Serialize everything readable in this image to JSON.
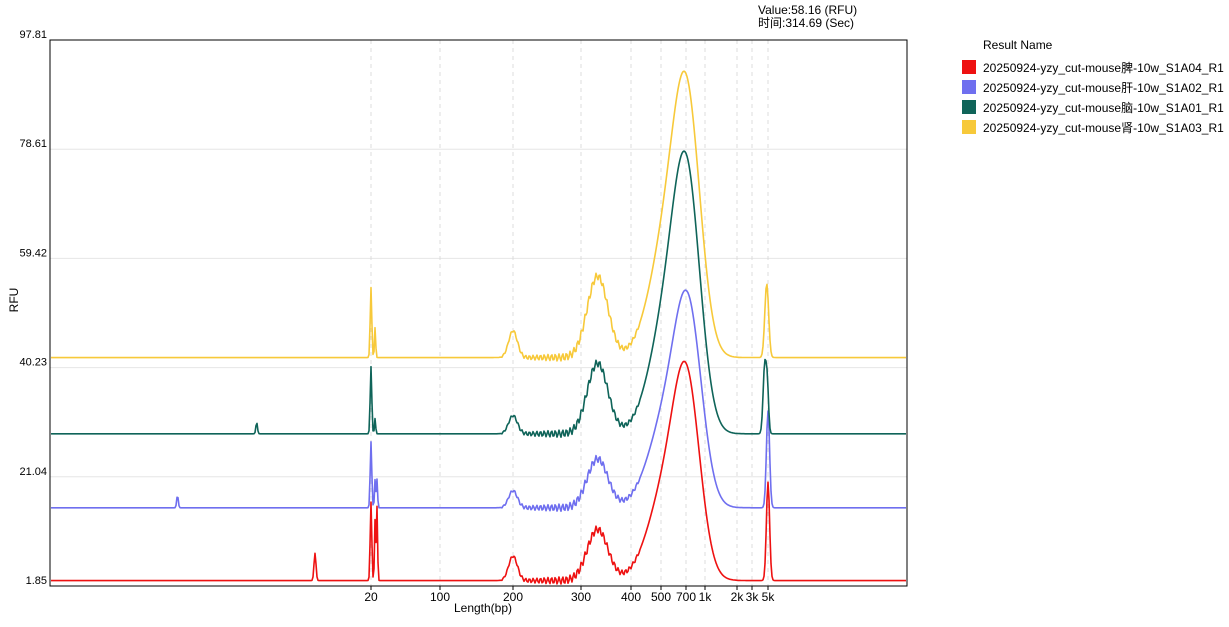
{
  "hover_readout": {
    "value_line": "Value:58.16 (RFU)",
    "time_line": "时间:314.69 (Sec)"
  },
  "legend": {
    "title": "Result Name"
  },
  "chart_data": {
    "type": "line",
    "xlabel": "Length(bp)",
    "ylabel": "RFU",
    "ylim": [
      1.85,
      97.81
    ],
    "y_ticks": [
      "97.81",
      "78.61",
      "59.42",
      "40.23",
      "21.04",
      "1.85"
    ],
    "x_scale": "nonlinear (marker-based, size ladder)",
    "x_ticks": [
      "20",
      "100",
      "200",
      "300",
      "400",
      "500",
      "700",
      "1k",
      "2k",
      "3k",
      "5k"
    ],
    "x_tick_bp": [
      20,
      100,
      200,
      300,
      400,
      500,
      700,
      1000,
      2000,
      3000,
      5000
    ],
    "grid": true,
    "legend_position": "right",
    "series": [
      {
        "name": "20250924-yzy_cut-mouse脾-10w_S1A04_R1",
        "color": "#ee1111",
        "baseline": 2.8,
        "marker_peaks": [
          [
            20,
            13.8,
            0.4
          ],
          [
            22,
            10.8,
            0.3
          ],
          [
            23,
            13.0,
            0.3
          ],
          [
            10,
            4.8,
            0.5
          ]
        ],
        "smear": [
          [
            200,
            4.3,
            11
          ],
          [
            330,
            9.0,
            26
          ],
          [
            560,
            17.6,
            48
          ],
          [
            720,
            26.3,
            32
          ]
        ],
        "upper_marker": [
          [
            5000,
            17.3,
            0.5
          ]
        ],
        "raw_peaks": [
          [
            205,
            14
          ],
          [
            310,
            31
          ],
          [
            700,
            32
          ],
          [
            4800,
            18
          ]
        ]
      },
      {
        "name": "20250924-yzy_cut-mouse肝-10w_S1A02_R1",
        "color": "#6f6fef",
        "baseline": 15.6,
        "marker_peaks": [
          [
            20,
            11.6,
            0.4
          ],
          [
            22,
            5.0,
            0.3
          ],
          [
            23,
            5.0,
            0.3
          ],
          [
            3,
            2.2,
            0.4
          ]
        ],
        "smear": [
          [
            200,
            3.0,
            11
          ],
          [
            330,
            8.6,
            26
          ],
          [
            560,
            17.0,
            48
          ],
          [
            740,
            27.2,
            33
          ]
        ],
        "upper_marker": [
          [
            5000,
            17.0,
            0.5
          ]
        ],
        "raw_peaks": [
          [
            210,
            20
          ],
          [
            320,
            36
          ],
          [
            740,
            58
          ],
          [
            4900,
            33
          ]
        ]
      },
      {
        "name": "20250924-yzy_cut-mouse脑-10w_S1A01_R1",
        "color": "#0f6459",
        "baseline": 28.6,
        "marker_peaks": [
          [
            20,
            11.8,
            0.4
          ],
          [
            22,
            2.7,
            0.3
          ],
          [
            6,
            2.0,
            0.4
          ]
        ],
        "smear": [
          [
            200,
            3.2,
            11
          ],
          [
            330,
            12.4,
            26
          ],
          [
            560,
            21.5,
            46
          ],
          [
            720,
            35.2,
            33
          ]
        ],
        "upper_marker": [
          [
            4500,
            11.9,
            0.5
          ],
          [
            4900,
            7.5,
            0.4
          ]
        ],
        "raw_peaks": [
          [
            210,
            32
          ],
          [
            320,
            44
          ],
          [
            720,
            91
          ],
          [
            4400,
            42
          ]
        ]
      },
      {
        "name": "20250924-yzy_cut-mouse肾-10w_S1A03_R1",
        "color": "#f7c93a",
        "baseline": 42.0,
        "marker_peaks": [
          [
            20,
            12.3,
            0.4
          ],
          [
            22,
            5.3,
            0.3
          ]
        ],
        "smear": [
          [
            200,
            4.7,
            11
          ],
          [
            330,
            14.3,
            26
          ],
          [
            560,
            22.1,
            46
          ],
          [
            720,
            35.4,
            33
          ]
        ],
        "upper_marker": [
          [
            4800,
            13.0,
            0.6
          ]
        ],
        "raw_peaks": [
          [
            210,
            47
          ],
          [
            320,
            58
          ],
          [
            720,
            97
          ],
          [
            4700,
            56
          ]
        ]
      }
    ]
  }
}
